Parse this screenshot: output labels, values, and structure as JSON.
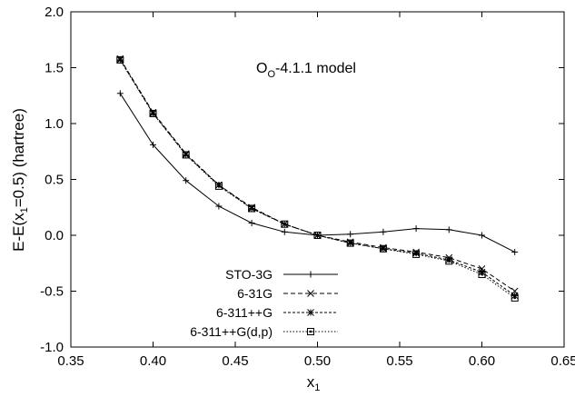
{
  "chart_data": {
    "type": "line",
    "annotation": {
      "prefix": "O",
      "subscript": "O",
      "suffix": "-4.1.1 model"
    },
    "xlabel": {
      "main": "x",
      "sub": "1"
    },
    "ylabel": {
      "before": "E-E(x",
      "sub": "1",
      "after": "=0.5) (hartree)"
    },
    "xlim": [
      0.35,
      0.65
    ],
    "ylim": [
      -1.0,
      2.0
    ],
    "xticks": [
      "0.35",
      "0.40",
      "0.45",
      "0.50",
      "0.55",
      "0.60",
      "0.65"
    ],
    "yticks": [
      "-1.0",
      "-0.5",
      "0.0",
      "0.5",
      "1.0",
      "1.5",
      "2.0"
    ],
    "grid": false,
    "legend_position": "bottom-left",
    "series": [
      {
        "name": "STO-3G",
        "marker": "plus",
        "dash": "solid",
        "x": [
          0.38,
          0.4,
          0.42,
          0.44,
          0.46,
          0.48,
          0.5,
          0.52,
          0.54,
          0.56,
          0.58,
          0.6,
          0.62
        ],
        "y": [
          1.27,
          0.81,
          0.49,
          0.26,
          0.11,
          0.03,
          0.0,
          0.01,
          0.03,
          0.06,
          0.05,
          0.0,
          -0.15
        ]
      },
      {
        "name": "6-31G",
        "marker": "x",
        "dash": "dashed",
        "x": [
          0.38,
          0.4,
          0.42,
          0.44,
          0.46,
          0.48,
          0.5,
          0.52,
          0.54,
          0.56,
          0.58,
          0.6,
          0.62
        ],
        "y": [
          1.58,
          1.1,
          0.73,
          0.45,
          0.25,
          0.1,
          0.0,
          -0.06,
          -0.11,
          -0.15,
          -0.2,
          -0.3,
          -0.5
        ]
      },
      {
        "name": "6-311++G",
        "marker": "star",
        "dash": "short-dashed",
        "x": [
          0.38,
          0.4,
          0.42,
          0.44,
          0.46,
          0.48,
          0.5,
          0.52,
          0.54,
          0.56,
          0.58,
          0.6,
          0.62
        ],
        "y": [
          1.57,
          1.09,
          0.72,
          0.45,
          0.24,
          0.1,
          0.0,
          -0.07,
          -0.12,
          -0.16,
          -0.22,
          -0.33,
          -0.54
        ]
      },
      {
        "name": "6-311++G(d,p)",
        "marker": "square",
        "dash": "dotted",
        "x": [
          0.38,
          0.4,
          0.42,
          0.44,
          0.46,
          0.48,
          0.5,
          0.52,
          0.54,
          0.56,
          0.58,
          0.6,
          0.62
        ],
        "y": [
          1.57,
          1.09,
          0.72,
          0.44,
          0.24,
          0.1,
          0.0,
          -0.07,
          -0.12,
          -0.17,
          -0.23,
          -0.35,
          -0.56
        ]
      }
    ]
  }
}
